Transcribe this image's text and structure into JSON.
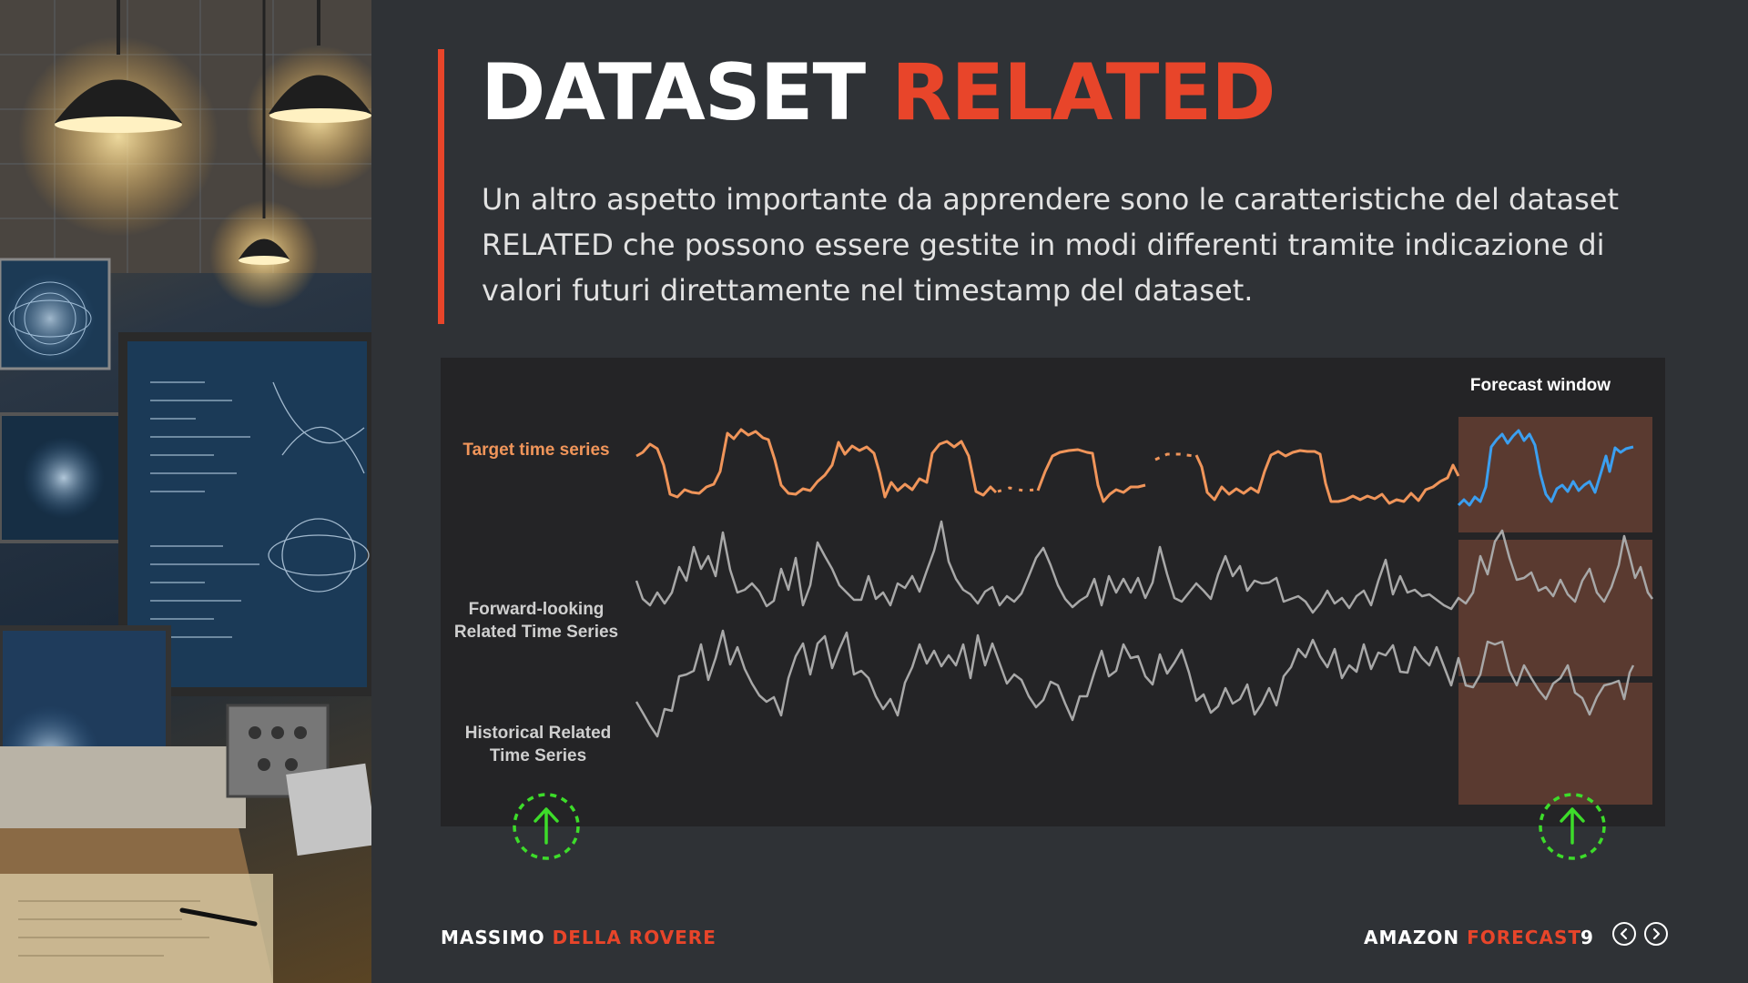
{
  "slide": {
    "title_main": "DATASET",
    "title_accent": "RELATED",
    "body": "Un altro aspetto importante da apprendere sono le caratteristiche del dataset RELATED che possono essere gestite in modi differenti tramite indicazione di valori futuri direttamente nel timestamp del dataset."
  },
  "figure": {
    "forecast_window_label": "Forecast window",
    "rows": [
      {
        "line1": "Target time series",
        "line2": ""
      },
      {
        "line1": "Forward-looking",
        "line2": "Related Time Series"
      },
      {
        "line1": "Historical Related",
        "line2": "Time Series"
      }
    ],
    "colors": {
      "target": "#f0955a",
      "forecast": "#3b9ff0",
      "related": "#a8a8a8",
      "window": "#5a3a30",
      "marker": "#3ddc2a"
    },
    "icons": {
      "marker": "up-arrow-dashed-circle"
    }
  },
  "footer": {
    "author_first": "MASSIMO",
    "author_last": "DELLA ROVERE",
    "product_first": "AMAZON",
    "product_last": "FORECAST",
    "page": "9"
  },
  "colors": {
    "accent": "#e8452a",
    "background": "#2f3236"
  }
}
